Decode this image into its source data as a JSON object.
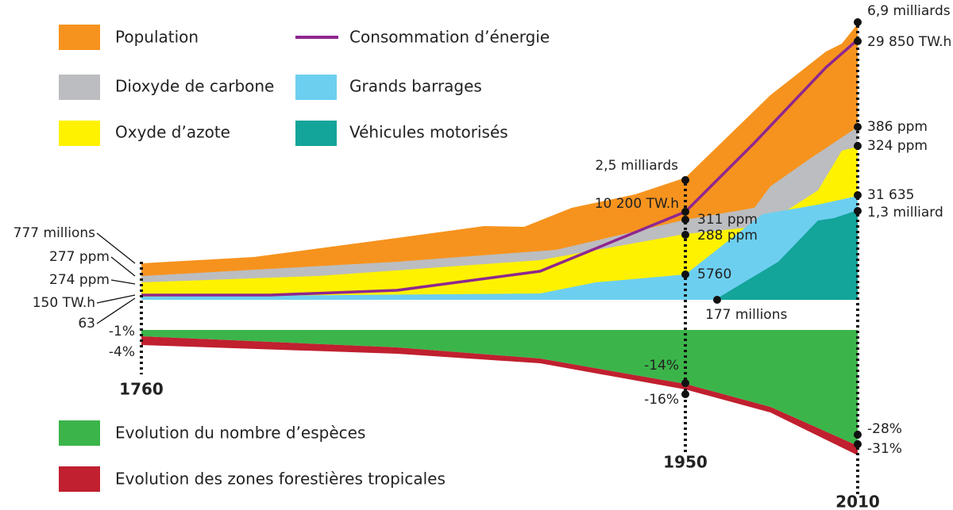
{
  "legend": [
    "Population",
    "Consommation d’énergie",
    "Dioxyde de carbone",
    "Grands barrages",
    "Oxyde d’azote",
    "Véhicules motorisés",
    "Evolution du nombre d’espèces",
    "Evolution des zones forestières tropicales"
  ],
  "years": [
    "1760",
    "1950",
    "2010"
  ],
  "left_labels": [
    "777 millions",
    "277 ppm",
    "274 ppm",
    "150 TW.h",
    "63",
    "-1%",
    "-4%"
  ],
  "mid_labels": [
    "2,5 milliards",
    "10 200 TW.h",
    "311 ppm",
    "288 ppm",
    "5760",
    "177 millions",
    "-14%",
    "-16%"
  ],
  "right_labels": [
    "6,9 milliards",
    "29 850 TW.h",
    "386 ppm",
    "324 ppm",
    "31 635",
    "1,3 milliard",
    "-28%",
    "-31%"
  ]
}
